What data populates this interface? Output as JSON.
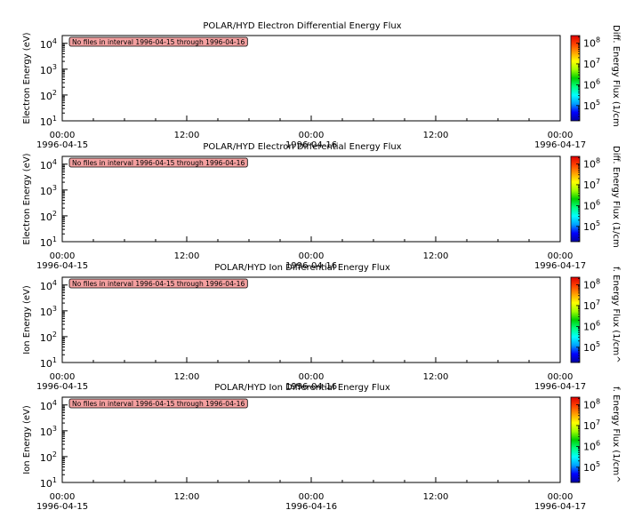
{
  "chart_data": [
    {
      "type": "heatmap",
      "title": "POLAR/HYD  Electron Differential Energy Flux",
      "ylabel": "Electron Energy (eV)",
      "colorbar_label": "Diff. Energy Flux (1/cm",
      "notice": "No files in interval 1996-04-15 through 1996-04-16",
      "x_ticks": [
        {
          "time": "00:00",
          "date": "1996-04-15"
        },
        {
          "time": "12:00",
          "date": ""
        },
        {
          "time": "00:00",
          "date": "1996-04-16"
        },
        {
          "time": "12:00",
          "date": ""
        },
        {
          "time": "00:00",
          "date": "1996-04-17"
        }
      ],
      "xlim": [
        "1996-04-15 00:00",
        "1996-04-17 00:00"
      ],
      "y_scale": "log",
      "ylim": [
        10,
        20000
      ],
      "y_ticks": [
        {
          "base": "10",
          "exp": "1"
        },
        {
          "base": "10",
          "exp": "2"
        },
        {
          "base": "10",
          "exp": "3"
        },
        {
          "base": "10",
          "exp": "4"
        }
      ],
      "colorbar_scale": "log",
      "colorbar_ticks": [
        {
          "base": "10",
          "exp": "5"
        },
        {
          "base": "10",
          "exp": "6"
        },
        {
          "base": "10",
          "exp": "7"
        },
        {
          "base": "10",
          "exp": "8"
        }
      ]
    },
    {
      "type": "heatmap",
      "title": "POLAR/HYD  Electron Differential Energy Flux",
      "ylabel": "Electron Energy (eV)",
      "colorbar_label": "Diff. Energy Flux (1/cm",
      "notice": "No files in interval 1996-04-15 through 1996-04-16",
      "x_ticks": [
        {
          "time": "00:00",
          "date": "1996-04-15"
        },
        {
          "time": "12:00",
          "date": ""
        },
        {
          "time": "00:00",
          "date": "1996-04-16"
        },
        {
          "time": "12:00",
          "date": ""
        },
        {
          "time": "00:00",
          "date": "1996-04-17"
        }
      ],
      "xlim": [
        "1996-04-15 00:00",
        "1996-04-17 00:00"
      ],
      "y_scale": "log",
      "ylim": [
        10,
        20000
      ],
      "y_ticks": [
        {
          "base": "10",
          "exp": "1"
        },
        {
          "base": "10",
          "exp": "2"
        },
        {
          "base": "10",
          "exp": "3"
        },
        {
          "base": "10",
          "exp": "4"
        }
      ],
      "colorbar_scale": "log",
      "colorbar_ticks": [
        {
          "base": "10",
          "exp": "5"
        },
        {
          "base": "10",
          "exp": "6"
        },
        {
          "base": "10",
          "exp": "7"
        },
        {
          "base": "10",
          "exp": "8"
        }
      ]
    },
    {
      "type": "heatmap",
      "title": "POLAR/HYD  Ion Differential Energy Flux",
      "ylabel": "Ion Energy (eV)",
      "colorbar_label": "f. Energy Flux (1/cm^",
      "notice": "No files in interval 1996-04-15 through 1996-04-16",
      "x_ticks": [
        {
          "time": "00:00",
          "date": "1996-04-15"
        },
        {
          "time": "12:00",
          "date": ""
        },
        {
          "time": "00:00",
          "date": "1996-04-16"
        },
        {
          "time": "12:00",
          "date": ""
        },
        {
          "time": "00:00",
          "date": "1996-04-17"
        }
      ],
      "xlim": [
        "1996-04-15 00:00",
        "1996-04-17 00:00"
      ],
      "y_scale": "log",
      "ylim": [
        10,
        20000
      ],
      "y_ticks": [
        {
          "base": "10",
          "exp": "1"
        },
        {
          "base": "10",
          "exp": "2"
        },
        {
          "base": "10",
          "exp": "3"
        },
        {
          "base": "10",
          "exp": "4"
        }
      ],
      "colorbar_scale": "log",
      "colorbar_ticks": [
        {
          "base": "10",
          "exp": "5"
        },
        {
          "base": "10",
          "exp": "6"
        },
        {
          "base": "10",
          "exp": "7"
        },
        {
          "base": "10",
          "exp": "8"
        }
      ]
    },
    {
      "type": "heatmap",
      "title": "POLAR/HYD  Ion Differential Energy Flux",
      "ylabel": "Ion Energy (eV)",
      "colorbar_label": "f. Energy Flux (1/cm^",
      "notice": "No files in interval 1996-04-15 through 1996-04-16",
      "x_ticks": [
        {
          "time": "00:00",
          "date": "1996-04-15"
        },
        {
          "time": "12:00",
          "date": ""
        },
        {
          "time": "00:00",
          "date": "1996-04-16"
        },
        {
          "time": "12:00",
          "date": ""
        },
        {
          "time": "00:00",
          "date": "1996-04-17"
        }
      ],
      "xlim": [
        "1996-04-15 00:00",
        "1996-04-17 00:00"
      ],
      "y_scale": "log",
      "ylim": [
        10,
        20000
      ],
      "y_ticks": [
        {
          "base": "10",
          "exp": "1"
        },
        {
          "base": "10",
          "exp": "2"
        },
        {
          "base": "10",
          "exp": "3"
        },
        {
          "base": "10",
          "exp": "4"
        }
      ],
      "colorbar_scale": "log",
      "colorbar_ticks": [
        {
          "base": "10",
          "exp": "5"
        },
        {
          "base": "10",
          "exp": "6"
        },
        {
          "base": "10",
          "exp": "7"
        },
        {
          "base": "10",
          "exp": "8"
        }
      ]
    }
  ],
  "colors": {
    "notice_fill": "#f4a0a0",
    "axis": "#000000",
    "colorbar_stops": [
      "#0000a0",
      "#0000ff",
      "#00a0ff",
      "#00ffff",
      "#00ff80",
      "#00d000",
      "#a0ff00",
      "#ffff00",
      "#ffa000",
      "#ff4000",
      "#e00000"
    ]
  }
}
